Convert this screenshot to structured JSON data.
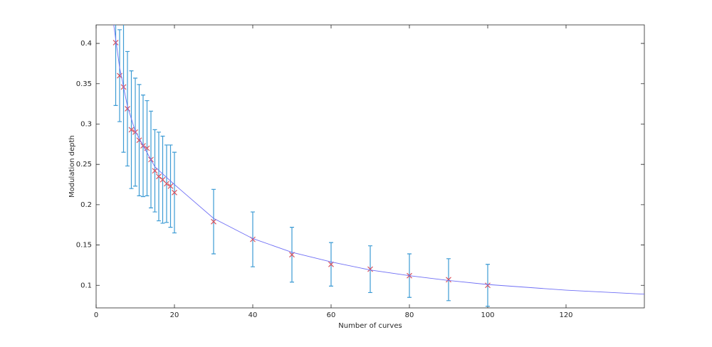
{
  "chart_data": {
    "type": "errorbar",
    "x_label": "Number of curves",
    "y_label": "Modulation depth",
    "xlim": [
      0,
      140
    ],
    "ylim": [
      0.072,
      0.423
    ],
    "xticks": [
      0,
      20,
      40,
      60,
      80,
      100,
      120
    ],
    "yticks": [
      0.1,
      0.15,
      0.2,
      0.25,
      0.3,
      0.35,
      0.4
    ],
    "series": [
      {
        "kind": "points",
        "color": "#d9535f",
        "error_color": "#3d9bd4",
        "x": [
          5,
          6,
          7,
          8,
          9,
          10,
          11,
          12,
          13,
          14,
          15,
          16,
          17,
          18,
          19,
          20,
          30,
          40,
          50,
          60,
          70,
          80,
          90,
          100
        ],
        "values": [
          0.401,
          0.36,
          0.346,
          0.319,
          0.293,
          0.29,
          0.28,
          0.273,
          0.27,
          0.256,
          0.242,
          0.235,
          0.231,
          0.226,
          0.223,
          0.215,
          0.179,
          0.157,
          0.138,
          0.126,
          0.12,
          0.112,
          0.107,
          0.1
        ],
        "errors": [
          0.078,
          0.057,
          0.081,
          0.071,
          0.073,
          0.067,
          0.069,
          0.063,
          0.059,
          0.06,
          0.051,
          0.055,
          0.054,
          0.048,
          0.051,
          0.05,
          0.04,
          0.034,
          0.034,
          0.027,
          0.029,
          0.027,
          0.026,
          0.026
        ]
      },
      {
        "kind": "line",
        "color": "#6f6ff5",
        "x": [
          4.5,
          6,
          8,
          10,
          15,
          20,
          30,
          40,
          50,
          60,
          70,
          80,
          90,
          100,
          120,
          140
        ],
        "values": [
          0.423,
          0.37,
          0.322,
          0.291,
          0.247,
          0.225,
          0.183,
          0.158,
          0.141,
          0.129,
          0.119,
          0.112,
          0.106,
          0.101,
          0.094,
          0.089
        ]
      }
    ]
  }
}
